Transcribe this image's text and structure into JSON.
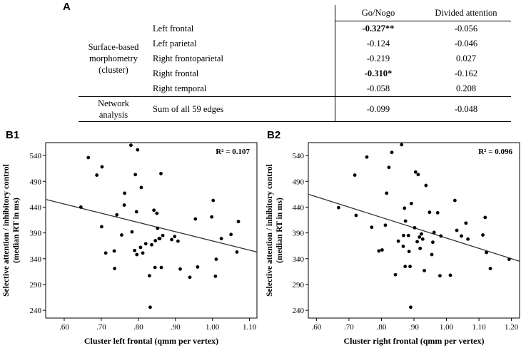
{
  "panel_a": {
    "label": "A",
    "col_headers": [
      "Go/Nogo",
      "Divided attention"
    ],
    "group1": [
      "Surface-based",
      "morphometry",
      "(cluster)"
    ],
    "group2": [
      "Network",
      "analysis"
    ],
    "rows": [
      {
        "region": "Left frontal",
        "gonogo": "-0.327**",
        "divided": "-0.056",
        "bold": true
      },
      {
        "region": "Left parietal",
        "gonogo": "-0.124",
        "divided": "-0.046",
        "bold": false
      },
      {
        "region": "Right frontoparietal",
        "gonogo": "-0.219",
        "divided": "0.027",
        "bold": false
      },
      {
        "region": "Right frontal",
        "gonogo": "-0.310*",
        "divided": "-0.162",
        "bold": true
      },
      {
        "region": "Right temporal",
        "gonogo": "-0.058",
        "divided": "0.208",
        "bold": false
      }
    ],
    "network_row": {
      "region": "Sum of all 59 edges",
      "gonogo": "-0.099",
      "divided": "-0.048"
    }
  },
  "chart_data": [
    {
      "type": "scatter",
      "panel": "B1",
      "xlabel": "Cluster left frontal (qmm per vertex)",
      "ylabel_lines": [
        "Selective attention / inhibitory control",
        "(median RT in ms)"
      ],
      "annotation": "R² = 0.107",
      "xlim": [
        0.55,
        1.12
      ],
      "ylim": [
        225,
        565
      ],
      "xticks": [
        0.6,
        0.7,
        0.8,
        0.9,
        1.0,
        1.1
      ],
      "xtick_labels": [
        ".60",
        ".70",
        ".80",
        ".90",
        "1.00",
        "1.10"
      ],
      "yticks": [
        240,
        290,
        340,
        390,
        440,
        490,
        540
      ],
      "fit_line": {
        "x": [
          0.55,
          1.12
        ],
        "y": [
          455,
          353
        ]
      },
      "points": [
        [
          0.665,
          536
        ],
        [
          0.688,
          502
        ],
        [
          0.702,
          518
        ],
        [
          0.645,
          440
        ],
        [
          0.701,
          402
        ],
        [
          0.712,
          351
        ],
        [
          0.735,
          355
        ],
        [
          0.736,
          321
        ],
        [
          0.742,
          425
        ],
        [
          0.755,
          386
        ],
        [
          0.762,
          444
        ],
        [
          0.763,
          467
        ],
        [
          0.78,
          560
        ],
        [
          0.783,
          392
        ],
        [
          0.792,
          503
        ],
        [
          0.795,
          431
        ],
        [
          0.796,
          348
        ],
        [
          0.798,
          551
        ],
        [
          0.79,
          356
        ],
        [
          0.806,
          362
        ],
        [
          0.808,
          478
        ],
        [
          0.812,
          351
        ],
        [
          0.82,
          369
        ],
        [
          0.83,
          307
        ],
        [
          0.832,
          246
        ],
        [
          0.836,
          367
        ],
        [
          0.842,
          434
        ],
        [
          0.846,
          375
        ],
        [
          0.85,
          428
        ],
        [
          0.852,
          399
        ],
        [
          0.856,
          379
        ],
        [
          0.858,
          379
        ],
        [
          0.861,
          505
        ],
        [
          0.862,
          323
        ],
        [
          0.866,
          385
        ],
        [
          0.845,
          323
        ],
        [
          0.89,
          377
        ],
        [
          0.898,
          383
        ],
        [
          0.907,
          374
        ],
        [
          0.913,
          320
        ],
        [
          0.939,
          304
        ],
        [
          0.954,
          417
        ],
        [
          0.96,
          324
        ],
        [
          0.998,
          421
        ],
        [
          1.002,
          453
        ],
        [
          1.008,
          306
        ],
        [
          1.01,
          339
        ],
        [
          1.024,
          379
        ],
        [
          1.05,
          387
        ],
        [
          1.066,
          353
        ],
        [
          1.07,
          412
        ]
      ]
    },
    {
      "type": "scatter",
      "panel": "B2",
      "xlabel": "Cluster right frontal (qmm per vertex)",
      "ylabel_lines": [
        "Selective attention / inhibitory control",
        "(median RT in ms)"
      ],
      "annotation": "R² = 0.096",
      "xlim": [
        0.575,
        1.225
      ],
      "ylim": [
        225,
        565
      ],
      "xticks": [
        0.6,
        0.7,
        0.8,
        0.9,
        1.0,
        1.1,
        1.2
      ],
      "xtick_labels": [
        ".60",
        ".70",
        ".80",
        ".90",
        "1.00",
        "1.10",
        "1.20"
      ],
      "yticks": [
        240,
        290,
        340,
        390,
        440,
        490,
        540
      ],
      "fit_line": {
        "x": [
          0.575,
          1.225
        ],
        "y": [
          465,
          335
        ]
      },
      "points": [
        [
          0.668,
          439
        ],
        [
          0.718,
          502
        ],
        [
          0.722,
          424
        ],
        [
          0.755,
          537
        ],
        [
          0.77,
          401
        ],
        [
          0.792,
          355
        ],
        [
          0.802,
          357
        ],
        [
          0.812,
          405
        ],
        [
          0.816,
          467
        ],
        [
          0.823,
          517
        ],
        [
          0.832,
          546
        ],
        [
          0.843,
          309
        ],
        [
          0.852,
          374
        ],
        [
          0.862,
          561
        ],
        [
          0.867,
          364
        ],
        [
          0.868,
          385
        ],
        [
          0.871,
          438
        ],
        [
          0.873,
          325
        ],
        [
          0.874,
          413
        ],
        [
          0.883,
          385
        ],
        [
          0.885,
          354
        ],
        [
          0.888,
          325
        ],
        [
          0.89,
          246
        ],
        [
          0.892,
          447
        ],
        [
          0.902,
          400
        ],
        [
          0.905,
          508
        ],
        [
          0.91,
          373
        ],
        [
          0.913,
          503
        ],
        [
          0.917,
          382
        ],
        [
          0.919,
          360
        ],
        [
          0.923,
          388
        ],
        [
          0.927,
          378
        ],
        [
          0.932,
          317
        ],
        [
          0.937,
          482
        ],
        [
          0.948,
          430
        ],
        [
          0.955,
          348
        ],
        [
          0.958,
          372
        ],
        [
          0.962,
          391
        ],
        [
          0.973,
          429
        ],
        [
          0.98,
          307
        ],
        [
          0.983,
          384
        ],
        [
          1.012,
          308
        ],
        [
          1.026,
          453
        ],
        [
          1.032,
          395
        ],
        [
          1.046,
          384
        ],
        [
          1.06,
          409
        ],
        [
          1.066,
          378
        ],
        [
          1.112,
          386
        ],
        [
          1.119,
          420
        ],
        [
          1.123,
          352
        ],
        [
          1.135,
          321
        ],
        [
          1.193,
          339
        ]
      ]
    }
  ]
}
